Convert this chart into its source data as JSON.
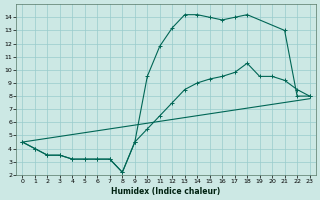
{
  "xlabel": "Humidex (Indice chaleur)",
  "bg_color": "#cce8e4",
  "grid_color": "#99cccc",
  "line_color": "#006655",
  "xlim": [
    -0.5,
    23.5
  ],
  "ylim": [
    2,
    15
  ],
  "xticks": [
    0,
    1,
    2,
    3,
    4,
    5,
    6,
    7,
    8,
    9,
    10,
    11,
    12,
    13,
    14,
    15,
    16,
    17,
    18,
    19,
    20,
    21,
    22,
    23
  ],
  "yticks": [
    2,
    3,
    4,
    5,
    6,
    7,
    8,
    9,
    10,
    11,
    12,
    13,
    14
  ],
  "line1_x": [
    0,
    1,
    2,
    3,
    4,
    5,
    6,
    7,
    8,
    9,
    10,
    11,
    12,
    13,
    14,
    15,
    16,
    17,
    18,
    21,
    22,
    23
  ],
  "line1_y": [
    4.5,
    4.0,
    3.5,
    3.5,
    3.2,
    3.2,
    3.2,
    3.2,
    2.2,
    4.5,
    9.5,
    11.8,
    13.2,
    14.2,
    14.2,
    14.0,
    13.8,
    14.0,
    14.2,
    13.0,
    8.0,
    8.0
  ],
  "line2_x": [
    0,
    23
  ],
  "line2_y": [
    4.5,
    7.8
  ],
  "line3_x": [
    0,
    1,
    2,
    3,
    4,
    5,
    6,
    7,
    8,
    9,
    10,
    11,
    12,
    13,
    14,
    15,
    16,
    17,
    18,
    19,
    20,
    21,
    22,
    23
  ],
  "line3_y": [
    4.5,
    4.0,
    3.5,
    3.5,
    3.2,
    3.2,
    3.2,
    3.2,
    2.2,
    4.5,
    5.5,
    6.5,
    7.5,
    8.5,
    9.0,
    9.3,
    9.5,
    9.8,
    10.5,
    9.5,
    9.5,
    9.2,
    8.5,
    8.0
  ]
}
